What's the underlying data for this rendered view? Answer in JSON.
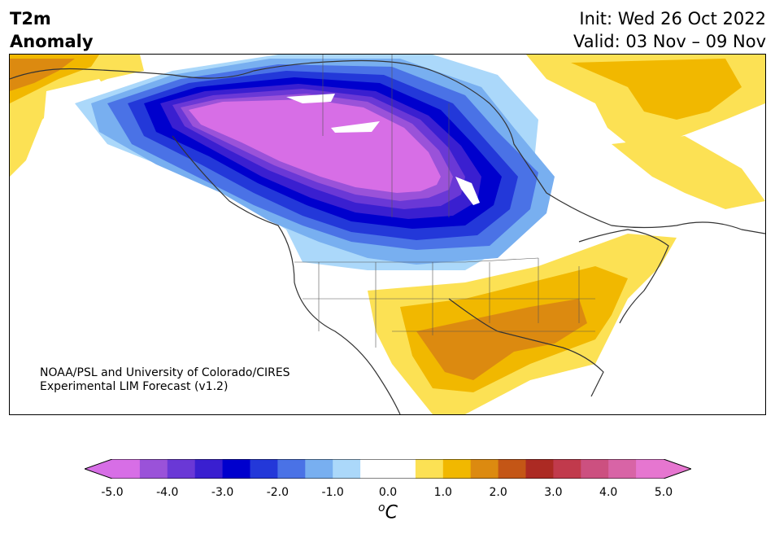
{
  "header": {
    "variable": "T2m",
    "subtitle": "Anomaly",
    "init": "Init: Wed 26 Oct 2022",
    "valid": "Valid: 03 Nov – 09 Nov"
  },
  "credit": {
    "line1": "NOAA/PSL and University of Colorado/CIRES",
    "line2": "Experimental LIM Forecast (v1.2)"
  },
  "colorbar": {
    "unit_super": "o",
    "unit_main": "C",
    "ticks": [
      "-5.0",
      "-4.0",
      "-3.0",
      "-2.0",
      "-1.0",
      "0.0",
      "1.0",
      "2.0",
      "3.0",
      "4.0",
      "5.0"
    ],
    "colors": [
      "#d76ee6",
      "#9a52d9",
      "#6a38d6",
      "#3a1fd0",
      "#0000cd",
      "#2338d9",
      "#4a72e6",
      "#78aff0",
      "#abd8fa",
      "#ffffff",
      "#ffffff",
      "#fce154",
      "#f1b800",
      "#dc8a10",
      "#c45616",
      "#ac2a23",
      "#c13a4c",
      "#cc5080",
      "#d864a6",
      "#e676d0"
    ],
    "min_color": "#d76ee6",
    "max_color": "#e676d0"
  },
  "map": {
    "region": "North America",
    "anomaly_fields": {
      "cold_core": "#d76ee6",
      "cold_ring": "#0000cd",
      "mild_cold": "#abd8fa",
      "warm_light": "#fce154",
      "warm_mid": "#f1b800",
      "warm_strong": "#dc8a10"
    }
  }
}
